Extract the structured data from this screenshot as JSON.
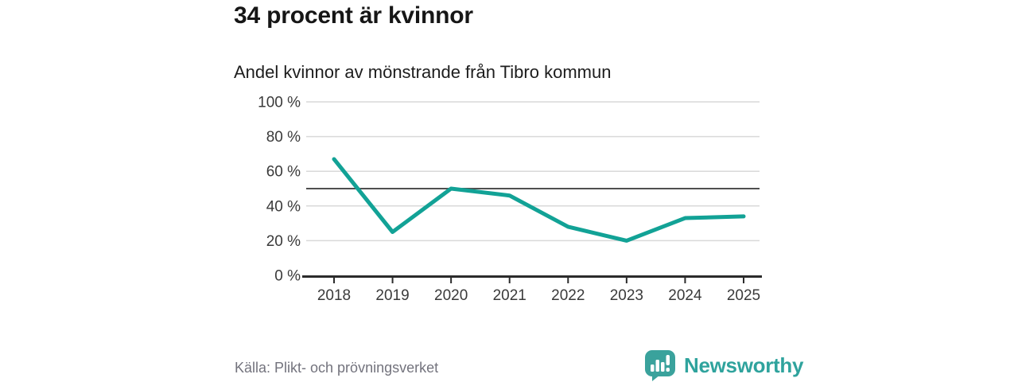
{
  "header": {
    "title": "34 procent är kvinnor",
    "subtitle": "Andel kvinnor av mönstrande från Tibro kommun"
  },
  "chart_data": {
    "type": "line",
    "title": "Andel kvinnor av mönstrande från Tibro kommun",
    "categories": [
      "2018",
      "2019",
      "2020",
      "2021",
      "2022",
      "2023",
      "2024",
      "2025"
    ],
    "series": [
      {
        "name": "Andel kvinnor av mönstrande",
        "values": [
          67,
          25,
          50,
          46,
          28,
          20,
          33,
          34
        ]
      }
    ],
    "ylim": [
      0,
      100
    ],
    "yticks": [
      0,
      20,
      40,
      60,
      80,
      100
    ],
    "ytick_labels": [
      "0 %",
      "20 %",
      "40 %",
      "60 %",
      "80 %",
      "100 %"
    ],
    "reference_line": 50,
    "grid": true,
    "legend": "none",
    "line_color": "#12a296",
    "grid_color": "#d9d9d9",
    "reference_color": "#4f4f4f",
    "axis_color": "#2b2b2b",
    "axis_text_color": "#3a3a3a"
  },
  "footer": {
    "source": "Källa: Plikt- och prövningsverket",
    "brand": "Newsworthy",
    "brand_color": "#2fa39d"
  }
}
